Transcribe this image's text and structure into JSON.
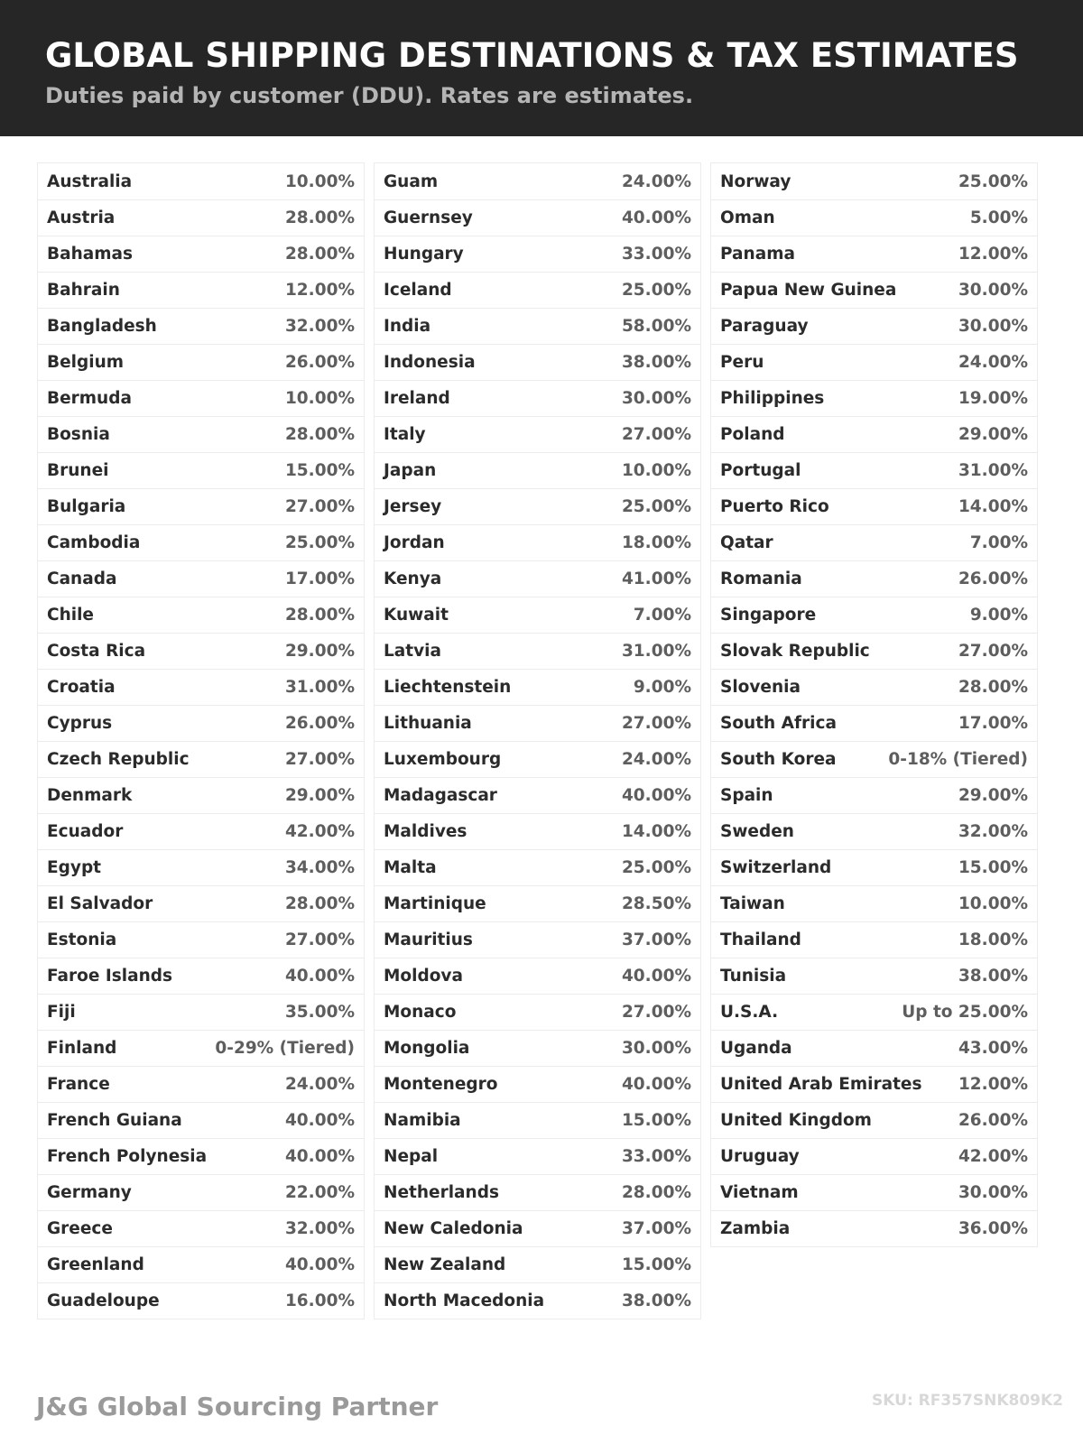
{
  "header": {
    "title": "GLOBAL SHIPPING DESTINATIONS & TAX ESTIMATES",
    "subtitle": "Duties paid by customer (DDU). Rates are estimates."
  },
  "columns": [
    [
      [
        "Australia",
        "10.00%"
      ],
      [
        "Austria",
        "28.00%"
      ],
      [
        "Bahamas",
        "28.00%"
      ],
      [
        "Bahrain",
        "12.00%"
      ],
      [
        "Bangladesh",
        "32.00%"
      ],
      [
        "Belgium",
        "26.00%"
      ],
      [
        "Bermuda",
        "10.00%"
      ],
      [
        "Bosnia",
        "28.00%"
      ],
      [
        "Brunei",
        "15.00%"
      ],
      [
        "Bulgaria",
        "27.00%"
      ],
      [
        "Cambodia",
        "25.00%"
      ],
      [
        "Canada",
        "17.00%"
      ],
      [
        "Chile",
        "28.00%"
      ],
      [
        "Costa Rica",
        "29.00%"
      ],
      [
        "Croatia",
        "31.00%"
      ],
      [
        "Cyprus",
        "26.00%"
      ],
      [
        "Czech Republic",
        "27.00%"
      ],
      [
        "Denmark",
        "29.00%"
      ],
      [
        "Ecuador",
        "42.00%"
      ],
      [
        "Egypt",
        "34.00%"
      ],
      [
        "El Salvador",
        "28.00%"
      ],
      [
        "Estonia",
        "27.00%"
      ],
      [
        "Faroe Islands",
        "40.00%"
      ],
      [
        "Fiji",
        "35.00%"
      ],
      [
        "Finland",
        "0-29% (Tiered)"
      ],
      [
        "France",
        "24.00%"
      ],
      [
        "French Guiana",
        "40.00%"
      ],
      [
        "French Polynesia",
        "40.00%"
      ],
      [
        "Germany",
        "22.00%"
      ],
      [
        "Greece",
        "32.00%"
      ],
      [
        "Greenland",
        "40.00%"
      ],
      [
        "Guadeloupe",
        "16.00%"
      ]
    ],
    [
      [
        "Guam",
        "24.00%"
      ],
      [
        "Guernsey",
        "40.00%"
      ],
      [
        "Hungary",
        "33.00%"
      ],
      [
        "Iceland",
        "25.00%"
      ],
      [
        "India",
        "58.00%"
      ],
      [
        "Indonesia",
        "38.00%"
      ],
      [
        "Ireland",
        "30.00%"
      ],
      [
        "Italy",
        "27.00%"
      ],
      [
        "Japan",
        "10.00%"
      ],
      [
        "Jersey",
        "25.00%"
      ],
      [
        "Jordan",
        "18.00%"
      ],
      [
        "Kenya",
        "41.00%"
      ],
      [
        "Kuwait",
        "7.00%"
      ],
      [
        "Latvia",
        "31.00%"
      ],
      [
        "Liechtenstein",
        "9.00%"
      ],
      [
        "Lithuania",
        "27.00%"
      ],
      [
        "Luxembourg",
        "24.00%"
      ],
      [
        "Madagascar",
        "40.00%"
      ],
      [
        "Maldives",
        "14.00%"
      ],
      [
        "Malta",
        "25.00%"
      ],
      [
        "Martinique",
        "28.50%"
      ],
      [
        "Mauritius",
        "37.00%"
      ],
      [
        "Moldova",
        "40.00%"
      ],
      [
        "Monaco",
        "27.00%"
      ],
      [
        "Mongolia",
        "30.00%"
      ],
      [
        "Montenegro",
        "40.00%"
      ],
      [
        "Namibia",
        "15.00%"
      ],
      [
        "Nepal",
        "33.00%"
      ],
      [
        "Netherlands",
        "28.00%"
      ],
      [
        "New Caledonia",
        "37.00%"
      ],
      [
        "New Zealand",
        "15.00%"
      ],
      [
        "North Macedonia",
        "38.00%"
      ]
    ],
    [
      [
        "Norway",
        "25.00%"
      ],
      [
        "Oman",
        "5.00%"
      ],
      [
        "Panama",
        "12.00%"
      ],
      [
        "Papua New Guinea",
        "30.00%"
      ],
      [
        "Paraguay",
        "30.00%"
      ],
      [
        "Peru",
        "24.00%"
      ],
      [
        "Philippines",
        "19.00%"
      ],
      [
        "Poland",
        "29.00%"
      ],
      [
        "Portugal",
        "31.00%"
      ],
      [
        "Puerto Rico",
        "14.00%"
      ],
      [
        "Qatar",
        "7.00%"
      ],
      [
        "Romania",
        "26.00%"
      ],
      [
        "Singapore",
        "9.00%"
      ],
      [
        "Slovak Republic",
        "27.00%"
      ],
      [
        "Slovenia",
        "28.00%"
      ],
      [
        "South Africa",
        "17.00%"
      ],
      [
        "South Korea",
        "0-18% (Tiered)"
      ],
      [
        "Spain",
        "29.00%"
      ],
      [
        "Sweden",
        "32.00%"
      ],
      [
        "Switzerland",
        "15.00%"
      ],
      [
        "Taiwan",
        "10.00%"
      ],
      [
        "Thailand",
        "18.00%"
      ],
      [
        "Tunisia",
        "38.00%"
      ],
      [
        "U.S.A.",
        "Up to 25.00%"
      ],
      [
        "Uganda",
        "43.00%"
      ],
      [
        "United Arab Emirates",
        "12.00%"
      ],
      [
        "United Kingdom",
        "26.00%"
      ],
      [
        "Uruguay",
        "42.00%"
      ],
      [
        "Vietnam",
        "30.00%"
      ],
      [
        "Zambia",
        "36.00%"
      ]
    ]
  ],
  "footer": {
    "brand": "J&G Global Sourcing Partner",
    "sku": "SKU: RF357SNK809K2"
  }
}
